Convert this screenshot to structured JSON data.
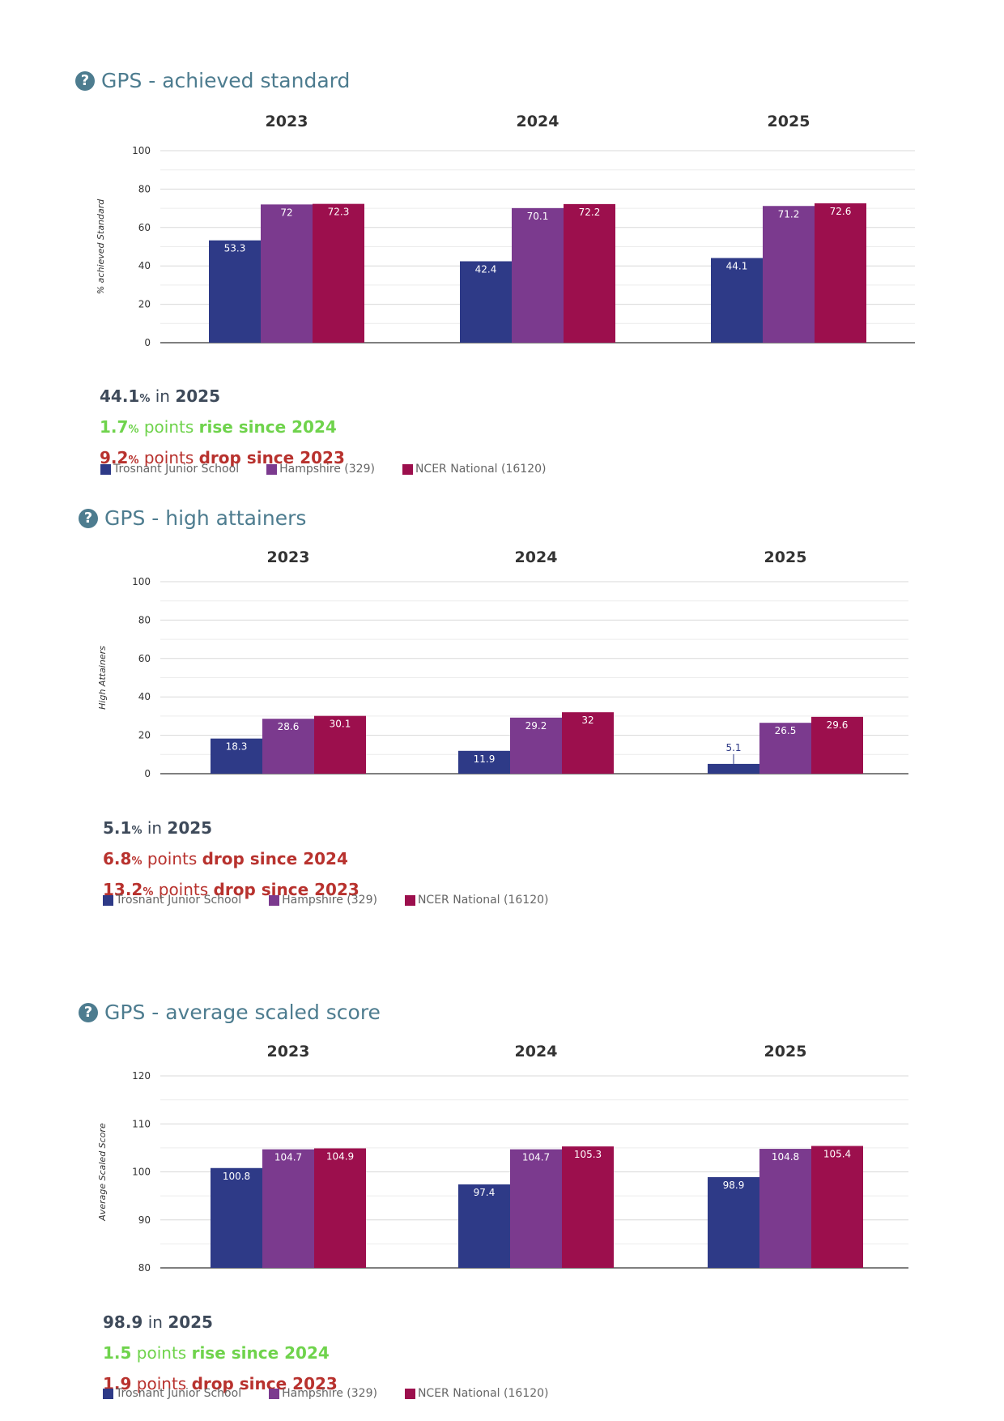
{
  "colors": {
    "school": "#2e3a87",
    "hampshire": "#7b3a8e",
    "national": "#9c0f4d",
    "axis": "#555555",
    "grid": "#d8d8d8"
  },
  "legend": [
    "Trosnant Junior School",
    "Hampshire (329)",
    "NCER National (16120)"
  ],
  "sections": [
    {
      "title": "GPS - achieved standard",
      "summary": {
        "main": {
          "value": "44.1",
          "unit": "%",
          "text": " in ",
          "year": "2025"
        },
        "line2": {
          "value": "1.7",
          "unit": "%",
          "text": " points ",
          "word": "rise since 2024"
        },
        "line3": {
          "value": "9.2",
          "unit": "%",
          "text": " points ",
          "word": "drop since 2023"
        }
      }
    },
    {
      "title": "GPS - high attainers",
      "summary": {
        "main": {
          "value": "5.1",
          "unit": "%",
          "text": " in ",
          "year": "2025"
        },
        "line2": {
          "value": "6.8",
          "unit": "%",
          "text": " points ",
          "word": "drop since 2024"
        },
        "line3": {
          "value": "13.2",
          "unit": "%",
          "text": " points ",
          "word": "drop since 2023"
        }
      }
    },
    {
      "title": "GPS - average scaled score",
      "summary": {
        "main": {
          "value": "98.9",
          "unit": "",
          "text": " in ",
          "year": "2025"
        },
        "line2": {
          "value": "1.5",
          "unit": "",
          "text": " points ",
          "word": "rise since 2024"
        },
        "line3": {
          "value": "1.9",
          "unit": "",
          "text": " points ",
          "word": "drop since 2023"
        }
      }
    }
  ],
  "chart_data": [
    {
      "type": "bar",
      "categories": [
        "2023",
        "2024",
        "2025"
      ],
      "ylabel": "% achieved Standard",
      "ylim": [
        0,
        100
      ],
      "yticks": [
        0,
        20,
        40,
        60,
        80,
        100
      ],
      "grid": true,
      "series": [
        {
          "name": "Trosnant Junior School",
          "values": [
            53.3,
            42.4,
            44.1
          ]
        },
        {
          "name": "Hampshire (329)",
          "values": [
            72,
            70.1,
            71.2
          ]
        },
        {
          "name": "NCER National (16120)",
          "values": [
            72.3,
            72.2,
            72.6
          ]
        }
      ]
    },
    {
      "type": "bar",
      "categories": [
        "2023",
        "2024",
        "2025"
      ],
      "ylabel": "High Attainers",
      "ylim": [
        0,
        100
      ],
      "yticks": [
        0,
        20,
        40,
        60,
        80,
        100
      ],
      "grid": true,
      "series": [
        {
          "name": "Trosnant Junior School",
          "values": [
            18.3,
            11.9,
            5.1
          ]
        },
        {
          "name": "Hampshire (329)",
          "values": [
            28.6,
            29.2,
            26.5
          ]
        },
        {
          "name": "NCER National (16120)",
          "values": [
            30.1,
            32,
            29.6
          ]
        }
      ]
    },
    {
      "type": "bar",
      "categories": [
        "2023",
        "2024",
        "2025"
      ],
      "ylabel": "Average Scaled Score",
      "ylim": [
        80,
        120
      ],
      "yticks": [
        80,
        90,
        100,
        110,
        120
      ],
      "grid": true,
      "series": [
        {
          "name": "Trosnant Junior School",
          "values": [
            100.8,
            97.4,
            98.9
          ]
        },
        {
          "name": "Hampshire (329)",
          "values": [
            104.7,
            104.7,
            104.8
          ]
        },
        {
          "name": "NCER National (16120)",
          "values": [
            104.9,
            105.3,
            105.4
          ]
        }
      ]
    }
  ]
}
